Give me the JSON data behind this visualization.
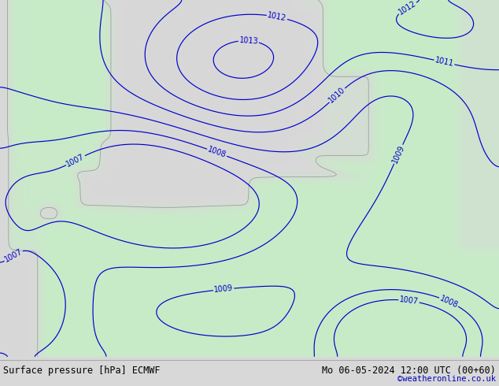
{
  "title_left": "Surface pressure [hPa] ECMWF",
  "title_right": "Mo 06-05-2024 12:00 UTC (00+60)",
  "watermark": "©weatheronline.co.uk",
  "sea_color": [
    0.847,
    0.847,
    0.847
  ],
  "land_color": [
    0.784,
    0.922,
    0.784
  ],
  "contour_color": "#0000cc",
  "coastline_color": "#999999",
  "label_color": "#0000cc",
  "text_color": "#000000",
  "watermark_color": "#0000bb",
  "figsize": [
    6.34,
    4.9
  ],
  "dpi": 100,
  "bottom_bar_color": "#d0d0d0",
  "label_fontsize": 7,
  "title_fontsize": 8.5
}
